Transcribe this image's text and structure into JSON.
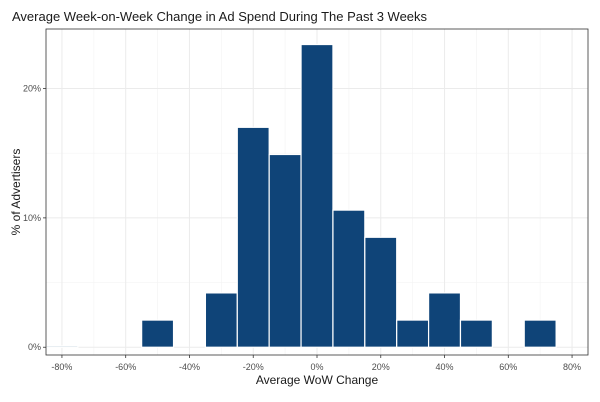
{
  "chart_data": {
    "type": "bar",
    "title": "Average Week-on-Week Change in Ad Spend During The Past 3 Weeks",
    "xlabel": "Average WoW Change",
    "ylabel": "% of Advertisers",
    "bin_width": 10,
    "bin_centers": [
      -80,
      -50,
      -30,
      -20,
      -10,
      0,
      10,
      20,
      30,
      40,
      50,
      70
    ],
    "values": [
      0.1,
      2.1,
      4.2,
      17.0,
      14.9,
      23.4,
      10.6,
      8.5,
      2.1,
      4.2,
      2.1,
      2.1
    ],
    "xlim": [
      -85,
      85
    ],
    "ylim": [
      -0.6,
      24.6
    ],
    "x_ticks": [
      -80,
      -60,
      -40,
      -20,
      0,
      20,
      40,
      60,
      80
    ],
    "x_tick_labels": [
      "-80%",
      "-60%",
      "-40%",
      "-20%",
      "0%",
      "20%",
      "40%",
      "60%",
      "80%"
    ],
    "y_ticks": [
      0,
      10,
      20
    ],
    "y_tick_labels": [
      "0%",
      "10%",
      "20%"
    ],
    "grid": true,
    "bar_color": "#0f4478"
  }
}
